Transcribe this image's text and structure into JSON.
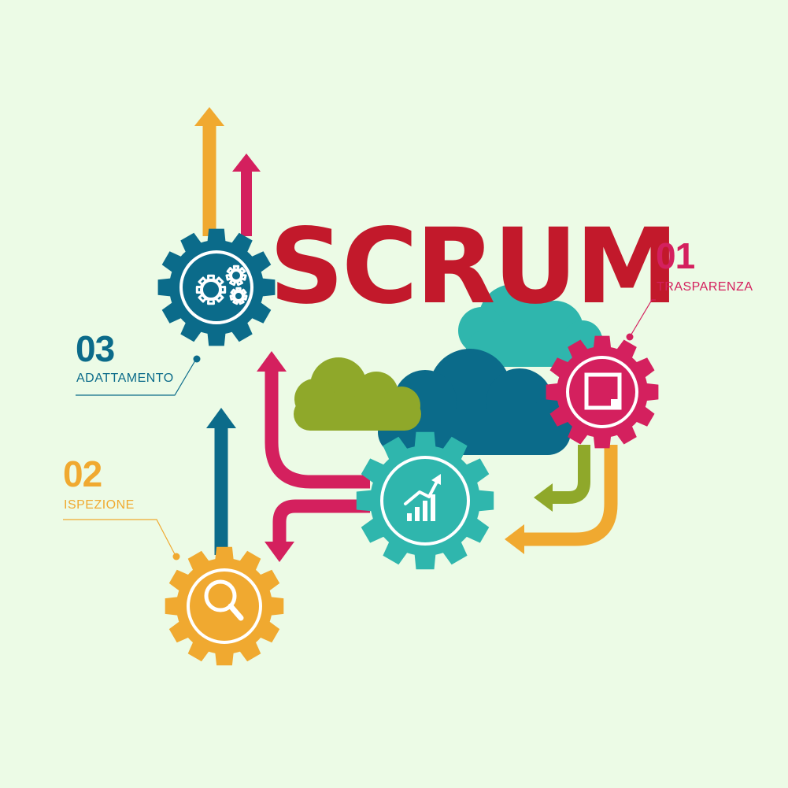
{
  "title": "SCRUM",
  "steps": [
    {
      "number": "01",
      "label": "TRASPARENZA",
      "icon": "window-icon"
    },
    {
      "number": "02",
      "label": "ISPEZIONE",
      "icon": "magnifier-icon"
    },
    {
      "number": "03",
      "label": "ADATTAMENTO",
      "icon": "gears-icon"
    }
  ],
  "center_icon": "growth-chart-icon",
  "colors": {
    "background": "#ecfbe6",
    "title": "#c2192b",
    "magenta": "#d4205e",
    "orange": "#f0a930",
    "teal": "#2fb6ad",
    "blue": "#0b6b8a",
    "olive": "#8fa82a"
  }
}
